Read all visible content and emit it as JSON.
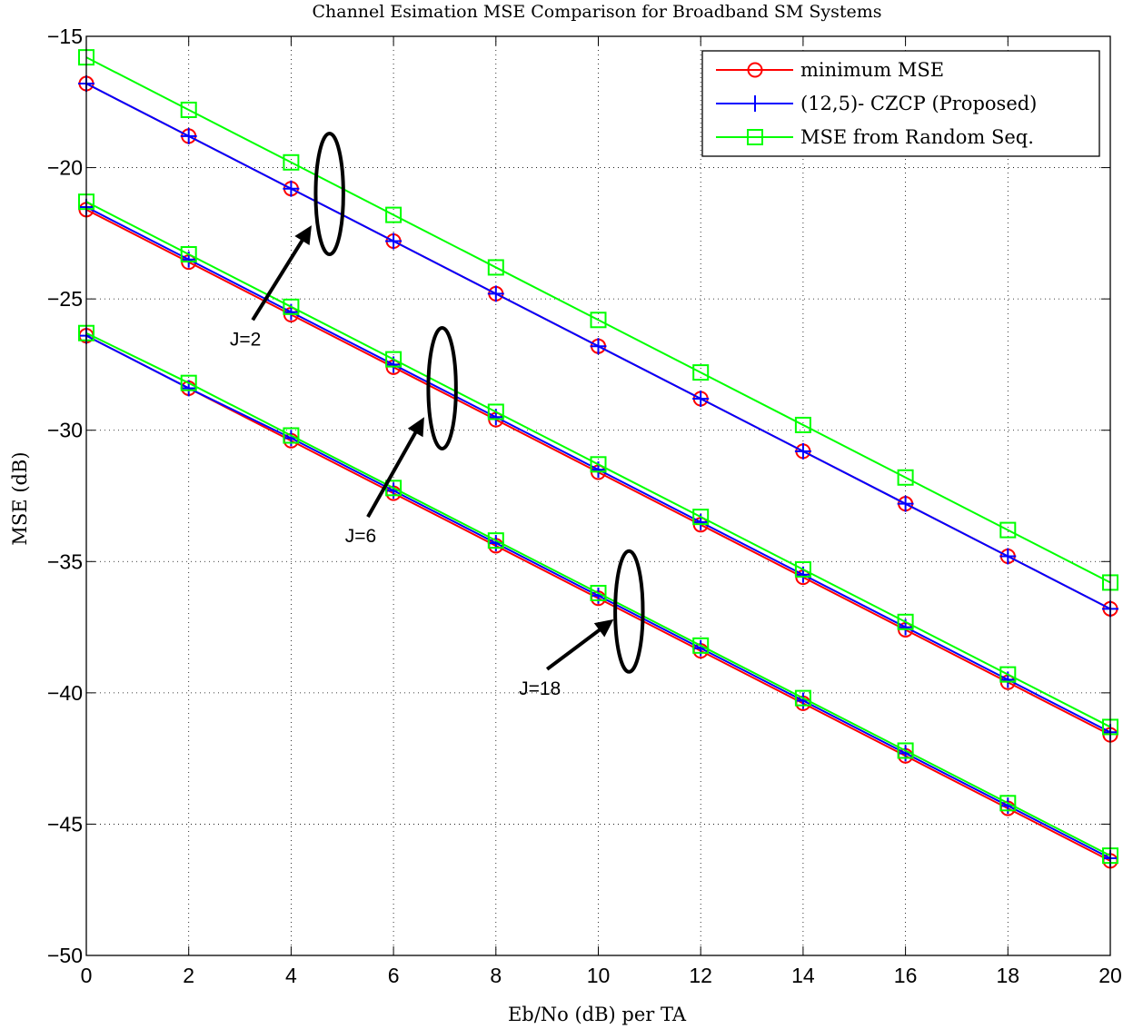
{
  "chart_data": {
    "type": "line",
    "title": "Channel Esimation MSE Comparison for Broadband SM Systems",
    "xlabel": "Eb/No (dB) per TA",
    "ylabel": "MSE (dB)",
    "xlim": [
      0,
      20
    ],
    "ylim": [
      -50,
      -15
    ],
    "xticks": [
      0,
      2,
      4,
      6,
      8,
      10,
      12,
      14,
      16,
      18,
      20
    ],
    "yticks": [
      -50,
      -45,
      -40,
      -35,
      -30,
      -25,
      -20,
      -15
    ],
    "xtick_labels": [
      "0",
      "2",
      "4",
      "6",
      "8",
      "10",
      "12",
      "14",
      "16",
      "18",
      "20"
    ],
    "ytick_labels": [
      "−50",
      "−45",
      "−40",
      "−35",
      "−30",
      "−25",
      "−20",
      "−15"
    ],
    "grid": true,
    "legend_position": "top-right",
    "x": [
      0,
      2,
      4,
      6,
      8,
      10,
      12,
      14,
      16,
      18,
      20
    ],
    "series": [
      {
        "name": "minimum MSE",
        "group": "J=2",
        "color": "#ff0000",
        "marker": "circle",
        "values": [
          -16.8,
          -18.8,
          -20.8,
          -22.8,
          -24.8,
          -26.8,
          -28.8,
          -30.8,
          -32.8,
          -34.8,
          -36.8
        ]
      },
      {
        "name": "(12,5)- CZCP (Proposed)",
        "group": "J=2",
        "color": "#0000ff",
        "marker": "plus",
        "values": [
          -16.8,
          -18.8,
          -20.8,
          -22.8,
          -24.8,
          -26.8,
          -28.8,
          -30.8,
          -32.8,
          -34.8,
          -36.8
        ]
      },
      {
        "name": "MSE from Random Seq.",
        "group": "J=2",
        "color": "#00ff00",
        "marker": "square",
        "values": [
          -15.8,
          -17.8,
          -19.8,
          -21.8,
          -23.8,
          -25.8,
          -27.8,
          -29.8,
          -31.8,
          -33.8,
          -35.8
        ]
      },
      {
        "name": "minimum MSE",
        "group": "J=6",
        "color": "#ff0000",
        "marker": "circle",
        "values": [
          -21.6,
          -23.6,
          -25.6,
          -27.6,
          -29.6,
          -31.6,
          -33.6,
          -35.6,
          -37.6,
          -39.6,
          -41.6
        ]
      },
      {
        "name": "(12,5)- CZCP (Proposed)",
        "group": "J=6",
        "color": "#0000ff",
        "marker": "plus",
        "values": [
          -21.5,
          -23.5,
          -25.5,
          -27.5,
          -29.5,
          -31.5,
          -33.5,
          -35.5,
          -37.5,
          -39.5,
          -41.5
        ]
      },
      {
        "name": "MSE from Random Seq.",
        "group": "J=6",
        "color": "#00ff00",
        "marker": "square",
        "values": [
          -21.3,
          -23.3,
          -25.3,
          -27.3,
          -29.3,
          -31.3,
          -33.3,
          -35.3,
          -37.3,
          -39.3,
          -41.3
        ]
      },
      {
        "name": "minimum MSE",
        "group": "J=18",
        "color": "#ff0000",
        "marker": "circle",
        "values": [
          -26.4,
          -28.4,
          -30.4,
          -32.4,
          -34.4,
          -36.4,
          -38.4,
          -40.4,
          -42.4,
          -44.4,
          -46.4
        ]
      },
      {
        "name": "(12,5)- CZCP (Proposed)",
        "group": "J=18",
        "color": "#0000ff",
        "marker": "plus",
        "values": [
          -26.4,
          -28.4,
          -30.3,
          -32.3,
          -34.3,
          -36.3,
          -38.3,
          -40.3,
          -42.3,
          -44.3,
          -46.3
        ]
      },
      {
        "name": "MSE from Random Seq.",
        "group": "J=18",
        "color": "#00ff00",
        "marker": "square",
        "values": [
          -26.3,
          -28.2,
          -30.2,
          -32.2,
          -34.2,
          -36.2,
          -38.2,
          -40.2,
          -42.2,
          -44.2,
          -46.2
        ]
      }
    ],
    "legend": [
      {
        "label": "minimum MSE",
        "color": "#ff0000",
        "marker": "circle"
      },
      {
        "label": "(12,5)- CZCP (Proposed)",
        "color": "#0000ff",
        "marker": "plus"
      },
      {
        "label": "MSE from Random Seq.",
        "color": "#00ff00",
        "marker": "square"
      }
    ],
    "annotations": [
      {
        "text": "J=2",
        "ellipse_center": [
          4.75,
          -21.0
        ],
        "ellipse_radii": [
          0.27,
          2.3
        ],
        "arrow_tail": [
          3.25,
          -25.8
        ],
        "arrow_head": [
          4.4,
          -22.2
        ]
      },
      {
        "text": "J=6",
        "ellipse_center": [
          6.95,
          -28.4
        ],
        "ellipse_radii": [
          0.27,
          2.3
        ],
        "arrow_tail": [
          5.5,
          -33.3
        ],
        "arrow_head": [
          6.6,
          -29.5
        ]
      },
      {
        "text": "J=18",
        "ellipse_center": [
          10.6,
          -36.9
        ],
        "ellipse_radii": [
          0.27,
          2.3
        ],
        "arrow_tail": [
          9.0,
          -39.1
        ],
        "arrow_head": [
          10.3,
          -37.2
        ]
      }
    ]
  }
}
